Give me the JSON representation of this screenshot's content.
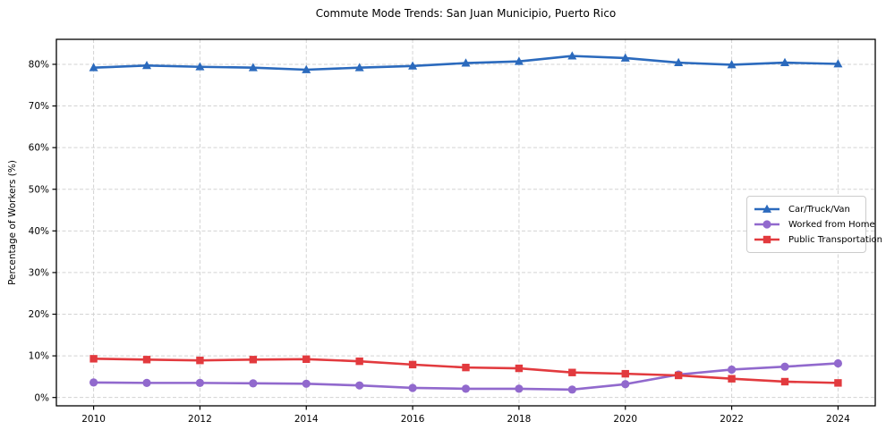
{
  "chart_data": {
    "type": "line",
    "title": "Commute Mode Trends: San Juan Municipio, Puerto Rico",
    "xlabel": "",
    "ylabel": "Percentage of Workers (%)",
    "x": [
      2010,
      2011,
      2012,
      2013,
      2014,
      2015,
      2016,
      2017,
      2018,
      2019,
      2020,
      2021,
      2022,
      2023,
      2024
    ],
    "series": [
      {
        "name": "Car/Truck/Van",
        "color": "#2b6abd",
        "marker": "triangle",
        "values": [
          79.2,
          79.7,
          79.4,
          79.2,
          78.7,
          79.2,
          79.6,
          80.3,
          80.7,
          82.0,
          81.5,
          80.4,
          79.9,
          80.4,
          80.1
        ]
      },
      {
        "name": "Worked from Home",
        "color": "#9169cd",
        "marker": "circle",
        "values": [
          3.6,
          3.5,
          3.5,
          3.4,
          3.3,
          2.9,
          2.3,
          2.1,
          2.1,
          1.9,
          3.2,
          5.5,
          6.7,
          7.4,
          8.2
        ]
      },
      {
        "name": "Public Transportation",
        "color": "#e23a3e",
        "marker": "square",
        "values": [
          9.3,
          9.1,
          8.9,
          9.1,
          9.2,
          8.7,
          7.9,
          7.2,
          7.0,
          6.0,
          5.7,
          5.3,
          4.5,
          3.8,
          3.5
        ]
      }
    ],
    "xticks": [
      2010,
      2012,
      2014,
      2016,
      2018,
      2020,
      2022,
      2024
    ],
    "xtick_labels": [
      "2010",
      "2012",
      "2014",
      "2016",
      "2018",
      "2020",
      "2022",
      "2024"
    ],
    "yticks": [
      0,
      10,
      20,
      30,
      40,
      50,
      60,
      70,
      80
    ],
    "ytick_labels": [
      "0%",
      "10%",
      "20%",
      "30%",
      "40%",
      "50%",
      "60%",
      "70%",
      "80%"
    ],
    "xlim": [
      2009.3,
      2024.7
    ],
    "ylim": [
      -2,
      86
    ],
    "grid": true,
    "grid_color": "#d3d3d3",
    "spine_color": "#000000",
    "legend_position": "center right"
  }
}
